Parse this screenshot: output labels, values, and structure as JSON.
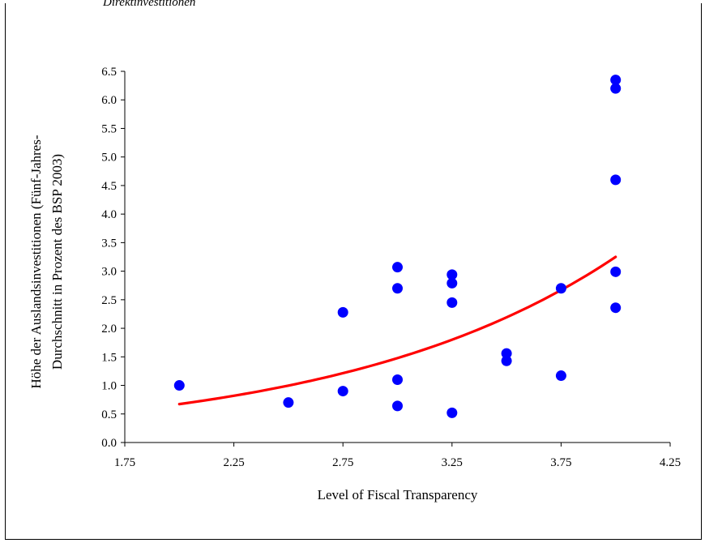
{
  "caption": "Direktinvestitionen",
  "chart_data": {
    "type": "scatter",
    "xlabel": "Level of Fiscal Transparency",
    "ylabel_lines": [
      "Höhe der Auslandsinvestitionen (Fünf-Jahres-",
      "Durchschnitt in Prozent des BSP 2003)"
    ],
    "xlim": [
      1.75,
      4.25
    ],
    "ylim": [
      0.0,
      6.5
    ],
    "x_ticks": [
      1.75,
      2.25,
      2.75,
      3.25,
      3.75,
      4.25
    ],
    "y_ticks": [
      0.0,
      0.5,
      1.0,
      1.5,
      2.0,
      2.5,
      3.0,
      3.5,
      4.0,
      4.5,
      5.0,
      5.5,
      6.0,
      6.5
    ],
    "grid": false,
    "legend": "none",
    "point_color": "#0000ff",
    "trend_color": "#ff0000",
    "points": [
      {
        "x": 2.0,
        "y": 1.0
      },
      {
        "x": 2.5,
        "y": 0.7
      },
      {
        "x": 2.75,
        "y": 0.9
      },
      {
        "x": 2.75,
        "y": 2.28
      },
      {
        "x": 3.0,
        "y": 0.64
      },
      {
        "x": 3.0,
        "y": 1.1
      },
      {
        "x": 3.0,
        "y": 2.7
      },
      {
        "x": 3.0,
        "y": 3.07
      },
      {
        "x": 3.25,
        "y": 0.52
      },
      {
        "x": 3.25,
        "y": 2.45
      },
      {
        "x": 3.25,
        "y": 2.79
      },
      {
        "x": 3.25,
        "y": 2.94
      },
      {
        "x": 3.5,
        "y": 1.43
      },
      {
        "x": 3.5,
        "y": 1.56
      },
      {
        "x": 3.75,
        "y": 1.17
      },
      {
        "x": 3.75,
        "y": 2.7
      },
      {
        "x": 4.0,
        "y": 2.36
      },
      {
        "x": 4.0,
        "y": 2.99
      },
      {
        "x": 4.0,
        "y": 4.6
      },
      {
        "x": 4.0,
        "y": 6.2
      },
      {
        "x": 4.0,
        "y": 6.35
      }
    ],
    "trendline": {
      "type": "exponential",
      "x_range": [
        2.0,
        4.0
      ],
      "a": 0.139,
      "b": 0.788
    }
  }
}
